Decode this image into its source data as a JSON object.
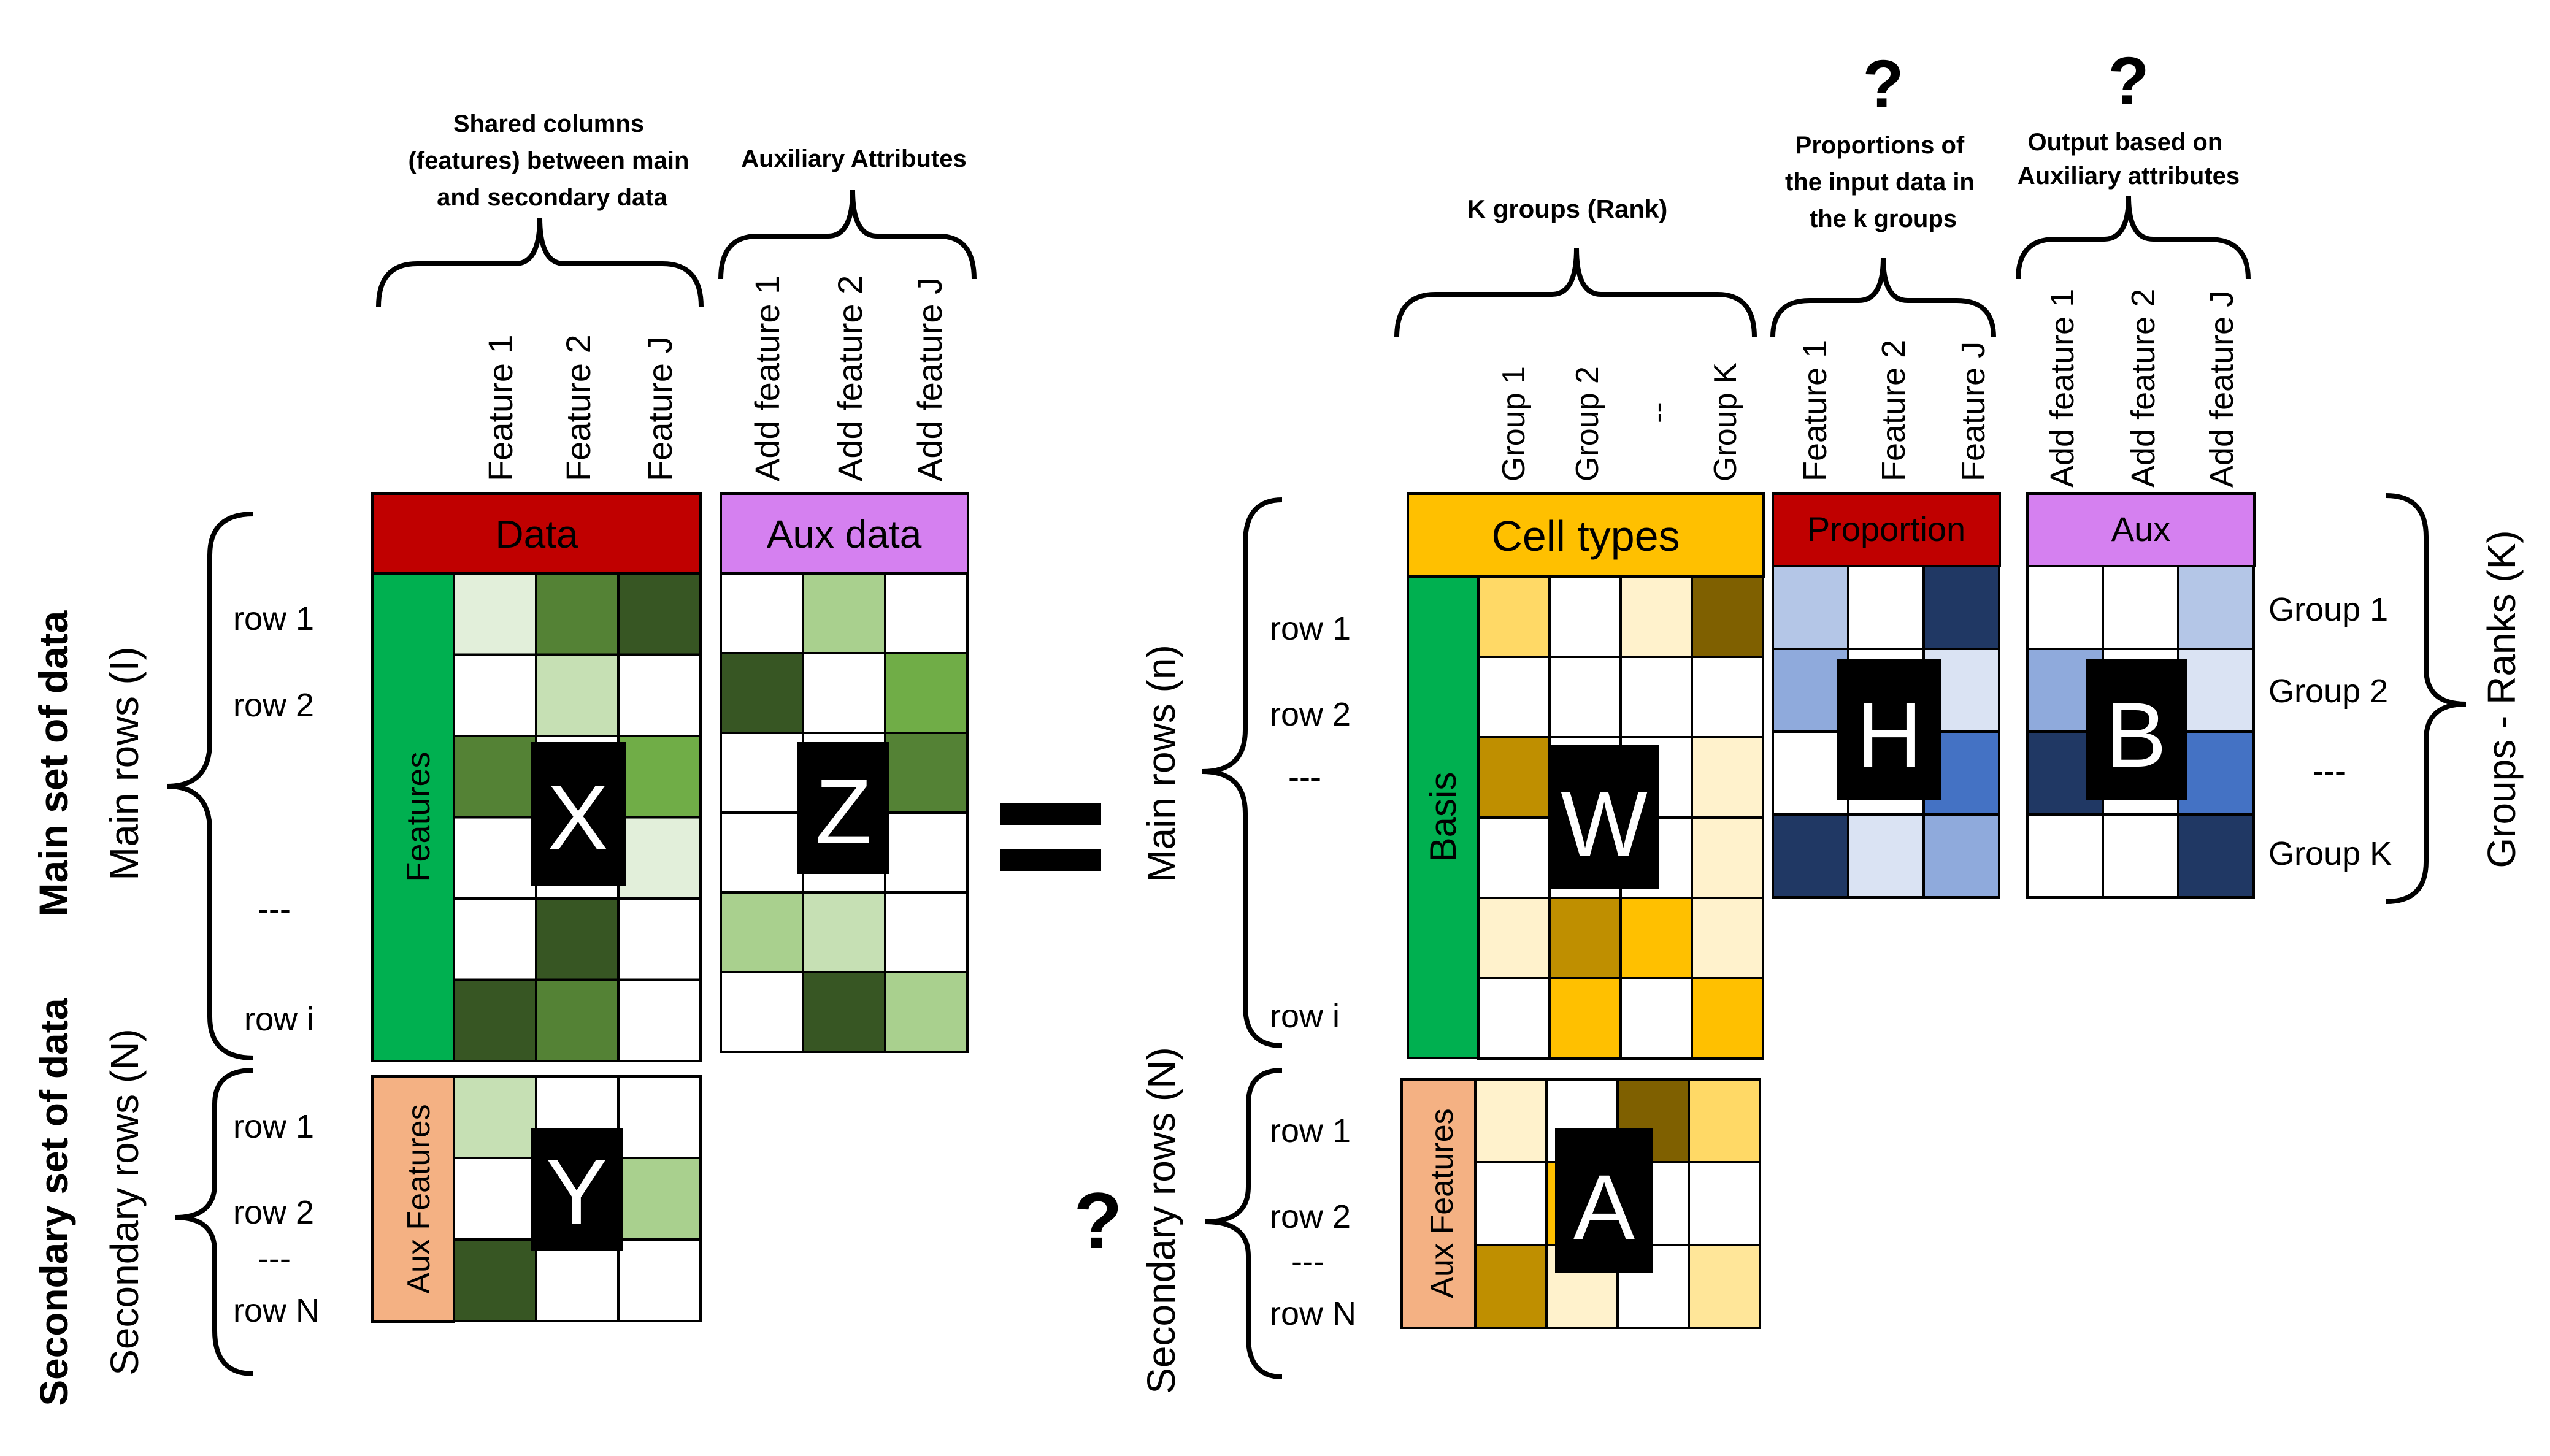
{
  "colors": {
    "data_header": "#c00000",
    "aux_header": "#d580f0",
    "features_bar": "#00b050",
    "aux_features_bar": "#f4b183",
    "cell_types_header": "#ffc000",
    "proportion_header": "#c00000",
    "aux_header_right": "#d580f0",
    "grid_line": "#000000",
    "letter_box": "#000000"
  },
  "left": {
    "main_set_label": "Main set of data",
    "main_rows_label": "Main rows (I)",
    "secondary_set_label": "Secondary set of data",
    "secondary_rows_label": "Secondary rows (N)",
    "main_row_labels": [
      "row 1",
      "row 2",
      "---",
      "row i"
    ],
    "secondary_row_labels": [
      "row 1",
      "row 2",
      "---",
      "row N"
    ],
    "shared_columns_title": [
      "Shared columns",
      "(features) between main",
      "and secondary data"
    ],
    "aux_attributes_title": "Auxiliary Attributes",
    "feature_columns": [
      "Feature 1",
      "Feature 2",
      "Feature J"
    ],
    "add_feature_columns": [
      "Add feature 1",
      "Add feature 2",
      "Add feature J"
    ],
    "data_header": "Data",
    "aux_data_header": "Aux data",
    "features_bar": "Features",
    "aux_features_bar": "Aux Features",
    "x_letter": "X",
    "z_letter": "Z",
    "y_letter": "Y"
  },
  "equals_sign": "=",
  "right": {
    "question_mark": "?",
    "k_groups_title": "K groups (Rank)",
    "proportions_title": [
      "Proportions of",
      "the input data in",
      "the k groups"
    ],
    "output_title": [
      "Output based on",
      "Auxiliary attributes"
    ],
    "proportions_question": "?",
    "output_question": "?",
    "group_columns": [
      "Group 1",
      "Group 2",
      "--",
      "Group K"
    ],
    "feature_columns": [
      "Feature 1",
      "Feature 2",
      "Feature J"
    ],
    "add_feature_columns": [
      "Add feature 1",
      "Add feature 2",
      "Add feature J"
    ],
    "main_rows_label": "Main rows (n)",
    "secondary_rows_label": "Secondary rows (N)",
    "main_row_labels": [
      "row 1",
      "row 2",
      "---",
      "row i"
    ],
    "secondary_row_labels": [
      "row 1",
      "row 2",
      "---",
      "row N"
    ],
    "cell_types_header": "Cell types",
    "proportion_header": "Proportion",
    "aux_header": "Aux",
    "basis_bar": "Basis",
    "aux_features_bar": "Aux Features",
    "w_letter": "W",
    "h_letter": "H",
    "b_letter": "B",
    "a_letter": "A",
    "group_row_labels": [
      "Group 1",
      "Group 2",
      "---",
      "Group K"
    ],
    "groups_ranks_label": "Groups - Ranks (K)"
  },
  "matrices": {
    "X": [
      [
        "#e2efda",
        "#548235",
        "#375623"
      ],
      [
        "#ffffff",
        "#c6e0b4",
        "#ffffff"
      ],
      [
        "#548235",
        "#ffffff",
        "#70ad47"
      ],
      [
        "#ffffff",
        "#ffffff",
        "#e2efda"
      ],
      [
        "#ffffff",
        "#375623",
        "#ffffff"
      ],
      [
        "#375623",
        "#548235",
        "#ffffff"
      ]
    ],
    "Z": [
      [
        "#ffffff",
        "#a9d08e",
        "#ffffff"
      ],
      [
        "#375623",
        "#ffffff",
        "#70ad47"
      ],
      [
        "#ffffff",
        "#ffffff",
        "#548235"
      ],
      [
        "#ffffff",
        "#ffffff",
        "#ffffff"
      ],
      [
        "#a9d08e",
        "#c6e0b4",
        "#ffffff"
      ],
      [
        "#ffffff",
        "#375623",
        "#a9d08e"
      ]
    ],
    "Y": [
      [
        "#c6e0b4",
        "#ffffff",
        "#ffffff"
      ],
      [
        "#ffffff",
        "#ffffff",
        "#a9d08e"
      ],
      [
        "#375623",
        "#ffffff",
        "#ffffff"
      ]
    ],
    "W": [
      [
        "#ffd966",
        "#ffffff",
        "#fff2cc",
        "#7f6000"
      ],
      [
        "#ffffff",
        "#ffffff",
        "#ffffff",
        "#ffffff"
      ],
      [
        "#bf8f00",
        "#ffffff",
        "#ffffff",
        "#fff2cc"
      ],
      [
        "#ffffff",
        "#ffffff",
        "#ffffff",
        "#fff2cc"
      ],
      [
        "#fff2cc",
        "#bf8f00",
        "#ffc000",
        "#fff2cc"
      ],
      [
        "#ffffff",
        "#ffc000",
        "#ffffff",
        "#ffc000"
      ]
    ],
    "A": [
      [
        "#fff2cc",
        "#ffffff",
        "#7f6000",
        "#ffd966"
      ],
      [
        "#ffffff",
        "#ffc000",
        "#ffffff",
        "#ffffff"
      ],
      [
        "#bf8f00",
        "#fff2cc",
        "#ffffff",
        "#ffe699"
      ]
    ],
    "H": [
      [
        "#b4c6e7",
        "#ffffff",
        "#203864"
      ],
      [
        "#8faadc",
        "#ffffff",
        "#dae3f3"
      ],
      [
        "#ffffff",
        "#ffffff",
        "#4472c4"
      ],
      [
        "#203864",
        "#dae3f3",
        "#8faadc"
      ]
    ],
    "B": [
      [
        "#ffffff",
        "#ffffff",
        "#b4c6e7"
      ],
      [
        "#8faadc",
        "#ffffff",
        "#dae3f3"
      ],
      [
        "#203864",
        "#ffffff",
        "#4472c4"
      ],
      [
        "#ffffff",
        "#ffffff",
        "#203864"
      ]
    ]
  }
}
